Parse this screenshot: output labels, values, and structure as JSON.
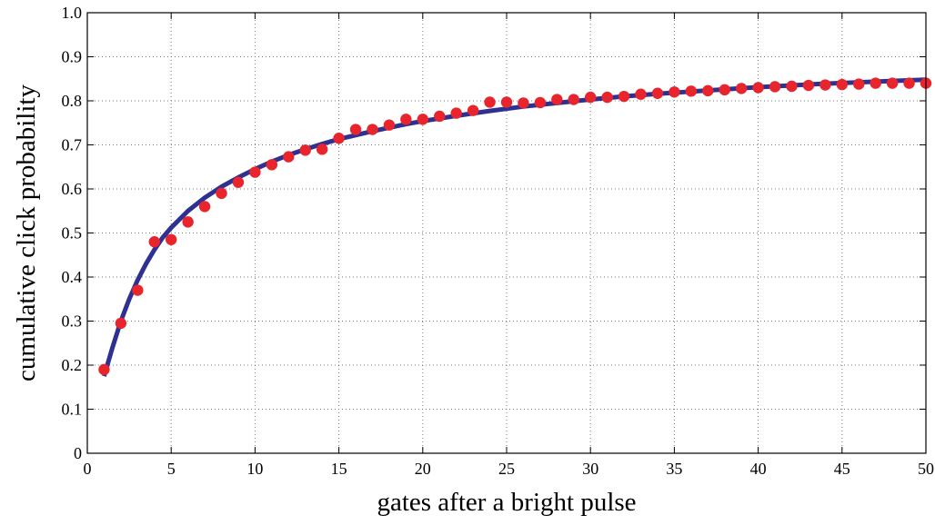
{
  "chart_data": {
    "type": "line",
    "xlabel": "gates after a bright pulse",
    "ylabel": "cumulative click probability",
    "xlim": [
      0,
      50
    ],
    "ylim": [
      0,
      1.0
    ],
    "xticks": [
      0,
      5,
      10,
      15,
      20,
      25,
      30,
      35,
      40,
      45,
      50
    ],
    "xtick_labels": [
      "0",
      "5",
      "10",
      "15",
      "20",
      "25",
      "30",
      "35",
      "40",
      "45",
      "50"
    ],
    "yticks": [
      0,
      0.1,
      0.2,
      0.3,
      0.4,
      0.5,
      0.6,
      0.7,
      0.8,
      0.9,
      1.0
    ],
    "ytick_labels": [
      "0",
      "0.1",
      "0.2",
      "0.3",
      "0.4",
      "0.5",
      "0.6",
      "0.7",
      "0.8",
      "0.9",
      "1.0"
    ],
    "grid": true,
    "series": [
      {
        "kind": "scatter",
        "color": "#e8242c",
        "x": [
          1,
          2,
          3,
          4,
          5,
          6,
          7,
          8,
          9,
          10,
          11,
          12,
          13,
          14,
          15,
          16,
          17,
          18,
          19,
          20,
          21,
          22,
          23,
          24,
          25,
          26,
          27,
          28,
          29,
          30,
          31,
          32,
          33,
          34,
          35,
          36,
          37,
          38,
          39,
          40,
          41,
          42,
          43,
          44,
          45,
          46,
          47,
          48,
          49,
          50
        ],
        "y": [
          0.19,
          0.295,
          0.37,
          0.48,
          0.485,
          0.525,
          0.56,
          0.59,
          0.615,
          0.638,
          0.655,
          0.673,
          0.688,
          0.69,
          0.715,
          0.735,
          0.735,
          0.745,
          0.758,
          0.758,
          0.765,
          0.772,
          0.778,
          0.797,
          0.797,
          0.795,
          0.796,
          0.803,
          0.803,
          0.808,
          0.808,
          0.81,
          0.815,
          0.817,
          0.82,
          0.822,
          0.823,
          0.825,
          0.828,
          0.83,
          0.832,
          0.833,
          0.835,
          0.836,
          0.837,
          0.838,
          0.84,
          0.84,
          0.84,
          0.84
        ]
      },
      {
        "kind": "line",
        "color": "#2e3192",
        "x": [
          1,
          1.5,
          2,
          2.5,
          3,
          3.5,
          4,
          4.5,
          5,
          6,
          7,
          8,
          9,
          10,
          11,
          12,
          13,
          14,
          15,
          16,
          17,
          18,
          19,
          20,
          22,
          24,
          26,
          28,
          30,
          32,
          34,
          36,
          38,
          40,
          42,
          44,
          46,
          48,
          50
        ],
        "y": [
          0.175,
          0.24,
          0.3,
          0.35,
          0.393,
          0.43,
          0.462,
          0.49,
          0.512,
          0.55,
          0.58,
          0.605,
          0.626,
          0.645,
          0.662,
          0.677,
          0.69,
          0.702,
          0.713,
          0.722,
          0.731,
          0.739,
          0.747,
          0.754,
          0.766,
          0.777,
          0.787,
          0.795,
          0.803,
          0.81,
          0.816,
          0.821,
          0.826,
          0.831,
          0.835,
          0.839,
          0.842,
          0.845,
          0.848
        ]
      }
    ]
  }
}
